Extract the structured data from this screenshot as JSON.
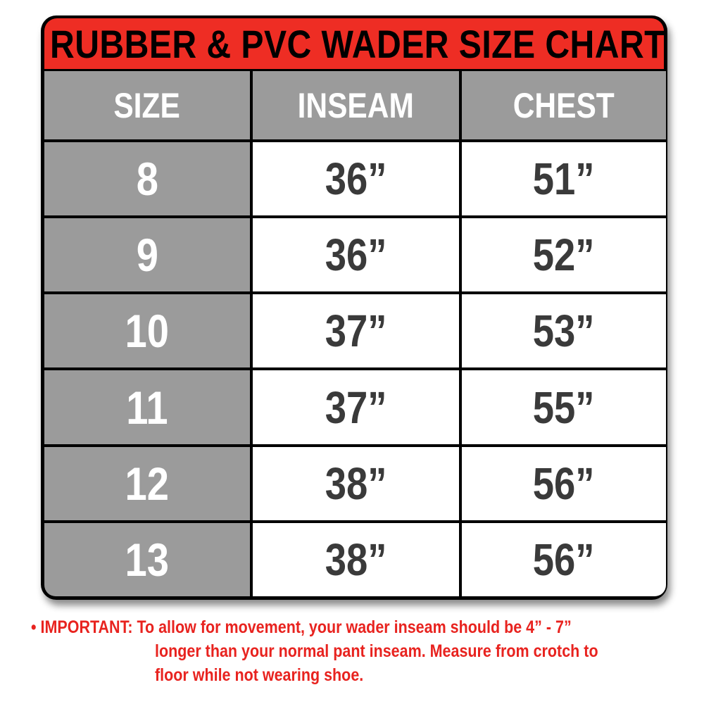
{
  "title": "RUBBER & PVC WADER SIZE CHART",
  "headers": [
    "SIZE",
    "INSEAM",
    "CHEST"
  ],
  "rows": [
    [
      "8",
      "36”",
      "51”"
    ],
    [
      "9",
      "36”",
      "52”"
    ],
    [
      "10",
      "37”",
      "53”"
    ],
    [
      "11",
      "37”",
      "55”"
    ],
    [
      "12",
      "38”",
      "56”"
    ],
    [
      "13",
      "38”",
      "56”"
    ]
  ],
  "note": {
    "line1": "• IMPORTANT: To allow for movement, your wader inseam should be 4” - 7”",
    "line2": "longer than your normal pant inseam. Measure from crotch to",
    "line3": "floor while not wearing shoe."
  },
  "colors": {
    "title_bg": "#ee2d24",
    "header_bg": "#9b9b9b",
    "value_text": "#3a3a3a",
    "note_text": "#e8231f"
  }
}
